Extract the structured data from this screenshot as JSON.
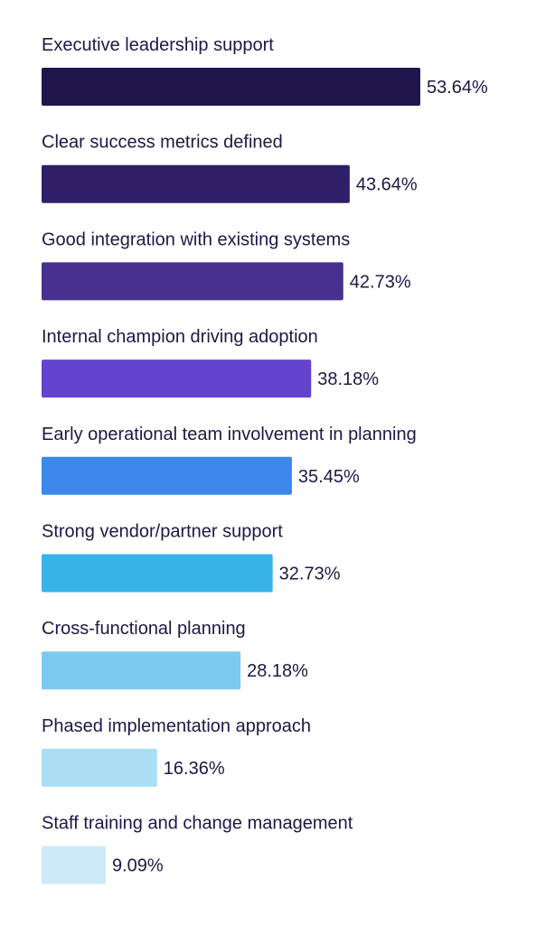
{
  "chart_data": {
    "type": "bar",
    "orientation": "horizontal",
    "categories": [
      "Executive leadership support",
      "Clear success metrics defined",
      "Good integration with existing systems",
      "Internal champion driving adoption",
      "Early operational team involvement in planning",
      "Strong vendor/partner support",
      "Cross-functional planning",
      "Phased implementation approach",
      "Staff training and change management"
    ],
    "values": [
      53.64,
      43.64,
      42.73,
      38.18,
      35.45,
      32.73,
      28.18,
      16.36,
      9.09
    ],
    "value_labels": [
      "53.64%",
      "43.64%",
      "42.73%",
      "38.18%",
      "35.45%",
      "32.73%",
      "28.18%",
      "16.36%",
      "9.09%"
    ],
    "colors": [
      "#20154a",
      "#2e1f68",
      "#48308f",
      "#6444cf",
      "#3b88ea",
      "#37b3ea",
      "#7ccbef",
      "#a9def5",
      "#cdeaf8"
    ],
    "unit": "%",
    "xlim": [
      0,
      53.64
    ],
    "title": "",
    "xlabel": "",
    "ylabel": "",
    "grid": false,
    "legend": "none"
  }
}
